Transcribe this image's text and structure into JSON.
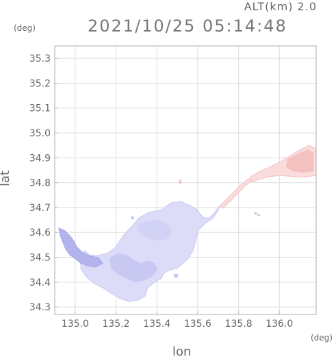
{
  "header": {
    "alt_label": "ALT(km) 2.0",
    "timestamp": "2021/10/25 05:14:48"
  },
  "axes": {
    "x_unit": "(deg)",
    "y_unit": "(deg)",
    "x_label": "lon",
    "y_label": "lat",
    "x_ticks": [
      "135.0",
      "135.2",
      "135.4",
      "135.6",
      "135.8",
      "136.0"
    ],
    "y_ticks": [
      "34.3",
      "34.4",
      "34.5",
      "34.6",
      "34.7",
      "34.8",
      "34.9",
      "35.0",
      "35.1",
      "35.2",
      "35.3"
    ]
  },
  "map": {
    "lon_range": [
      134.9,
      136.18
    ],
    "lat_range": [
      34.27,
      35.35
    ],
    "x_tick_values": [
      135.0,
      135.2,
      135.4,
      135.6,
      135.8,
      136.0
    ],
    "y_tick_values": [
      34.3,
      34.4,
      34.5,
      34.6,
      34.7,
      34.8,
      34.9,
      35.0,
      35.1,
      35.2,
      35.3
    ],
    "grid": true,
    "colors": {
      "frame": "#bbbbbb",
      "grid": "#dddddd",
      "negative_fill": "#dcdcf8",
      "negative_dark": "#b4b4ec",
      "positive_fill": "#fbdcdc",
      "positive_dark": "#f4c0c0"
    }
  }
}
